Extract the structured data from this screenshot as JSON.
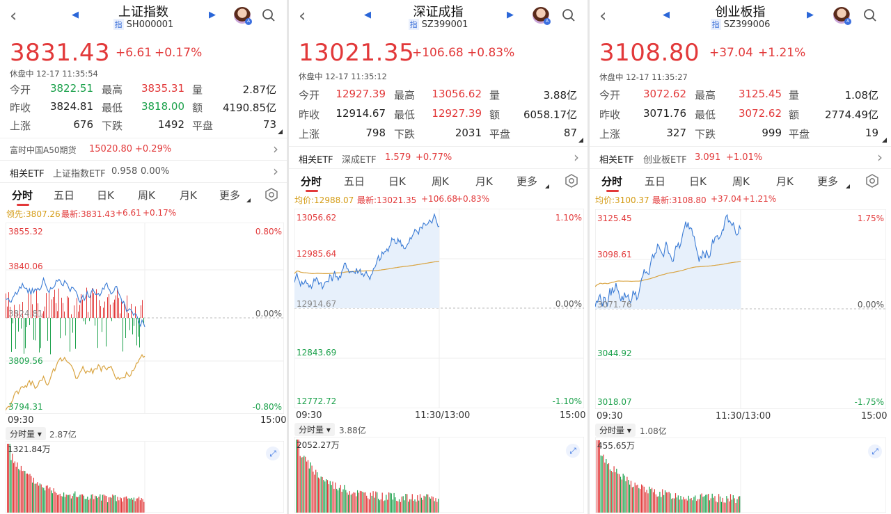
{
  "panels": [
    {
      "title": "上证指数",
      "code": "SH000001",
      "code_badge": "指",
      "price": "3831.43",
      "change": "+6.61",
      "change_pct": "+0.17%",
      "status": "休盘中 12-17 11:35:54",
      "stats": [
        [
          {
            "label": "今开",
            "value": "3822.51",
            "c": "green"
          },
          {
            "label": "最高",
            "value": "3835.31",
            "c": "red"
          },
          {
            "label": "量",
            "value": "2.87亿",
            "c": "dark"
          }
        ],
        [
          {
            "label": "昨收",
            "value": "3824.81",
            "c": "dark"
          },
          {
            "label": "最低",
            "value": "3818.00",
            "c": "green"
          },
          {
            "label": "额",
            "value": "4190.85亿",
            "c": "dark"
          }
        ],
        [
          {
            "label": "上涨",
            "value": "676",
            "c": "dark"
          },
          {
            "label": "下跌",
            "value": "1492",
            "c": "dark"
          },
          {
            "label": "平盘",
            "value": "73",
            "c": "dark"
          }
        ]
      ],
      "futures": {
        "label": "富时中国A50期货",
        "value": "15020.80",
        "pct": "+0.29%"
      },
      "etf": {
        "label": "相关ETF",
        "name": "上证指数ETF",
        "value": "0.958",
        "pct": "0.00%"
      },
      "tabs": [
        "分时",
        "五日",
        "日K",
        "周K",
        "月K",
        "更多"
      ],
      "info": {
        "avg_label": "领先:3807.26",
        "latest_label": "最新:3831.43",
        "chg": "+6.61",
        "pct": "+0.17%"
      },
      "y_labels": [
        "3855.32",
        "3840.06",
        "3824.81",
        "3809.56",
        "3794.31"
      ],
      "pct_labels": [
        "0.80%",
        "0.00%",
        "-0.80%"
      ],
      "x_labels": [
        "09:30",
        "",
        "15:00"
      ],
      "vol_pill": "分时量",
      "vol_total": "2.87亿",
      "vol_max": "1321.84万"
    },
    {
      "title": "深证成指",
      "code": "SZ399001",
      "code_badge": "指",
      "price": "13021.35",
      "change": "+106.68",
      "change_pct": "+0.83%",
      "status": "休盘中 12-17 11:35:12",
      "stats": [
        [
          {
            "label": "今开",
            "value": "12927.39",
            "c": "red"
          },
          {
            "label": "最高",
            "value": "13056.62",
            "c": "red"
          },
          {
            "label": "量",
            "value": "3.88亿",
            "c": "dark"
          }
        ],
        [
          {
            "label": "昨收",
            "value": "12914.67",
            "c": "dark"
          },
          {
            "label": "最低",
            "value": "12927.39",
            "c": "red"
          },
          {
            "label": "额",
            "value": "6058.17亿",
            "c": "dark"
          }
        ],
        [
          {
            "label": "上涨",
            "value": "798",
            "c": "dark"
          },
          {
            "label": "下跌",
            "value": "2031",
            "c": "dark"
          },
          {
            "label": "平盘",
            "value": "87",
            "c": "dark"
          }
        ]
      ],
      "etf": {
        "label": "相关ETF",
        "name": "深成ETF",
        "value": "1.579",
        "pct": "+0.77%"
      },
      "tabs": [
        "分时",
        "五日",
        "日K",
        "周K",
        "月K",
        "更多"
      ],
      "info": {
        "avg_label": "均价:12988.07",
        "latest_label": "最新:13021.35",
        "chg": "+106.68",
        "pct": "+0.83%"
      },
      "y_labels": [
        "13056.62",
        "12985.64",
        "12914.67",
        "12843.69",
        "12772.72"
      ],
      "pct_labels": [
        "1.10%",
        "0.00%",
        "-1.10%"
      ],
      "x_labels": [
        "09:30",
        "11:30/13:00",
        "15:00"
      ],
      "vol_pill": "分时量",
      "vol_total": "3.88亿",
      "vol_max": "2052.27万"
    },
    {
      "title": "创业板指",
      "code": "SZ399006",
      "code_badge": "指",
      "price": "3108.80",
      "change": "+37.04",
      "change_pct": "+1.21%",
      "status": "休盘中 12-17 11:35:27",
      "stats": [
        [
          {
            "label": "今开",
            "value": "3072.62",
            "c": "red"
          },
          {
            "label": "最高",
            "value": "3125.45",
            "c": "red"
          },
          {
            "label": "量",
            "value": "1.08亿",
            "c": "dark"
          }
        ],
        [
          {
            "label": "昨收",
            "value": "3071.76",
            "c": "dark"
          },
          {
            "label": "最低",
            "value": "3072.62",
            "c": "red"
          },
          {
            "label": "额",
            "value": "2774.49亿",
            "c": "dark"
          }
        ],
        [
          {
            "label": "上涨",
            "value": "327",
            "c": "dark"
          },
          {
            "label": "下跌",
            "value": "999",
            "c": "dark"
          },
          {
            "label": "平盘",
            "value": "19",
            "c": "dark"
          }
        ]
      ],
      "etf": {
        "label": "相关ETF",
        "name": "创业板ETF",
        "value": "3.091",
        "pct": "+1.01%"
      },
      "tabs": [
        "分时",
        "五日",
        "日K",
        "周K",
        "月K",
        "更多"
      ],
      "info": {
        "avg_label": "均价:3100.37",
        "latest_label": "最新:3108.80",
        "chg": "+37.04",
        "pct": "+1.21%"
      },
      "y_labels": [
        "3125.45",
        "3098.61",
        "3071.76",
        "3044.92",
        "3018.07"
      ],
      "pct_labels": [
        "1.75%",
        "0.00%",
        "-1.75%"
      ],
      "x_labels": [
        "09:30",
        "11:30/13:00",
        "15:00"
      ],
      "vol_pill": "分时量",
      "vol_total": "1.08亿",
      "vol_max": "455.65万"
    }
  ],
  "colors": {
    "up": "#e2393a",
    "down": "#1aa04a",
    "price_line": "#3a7bd5",
    "avg_line": "#d9a441",
    "accent": "#2a66d8"
  }
}
